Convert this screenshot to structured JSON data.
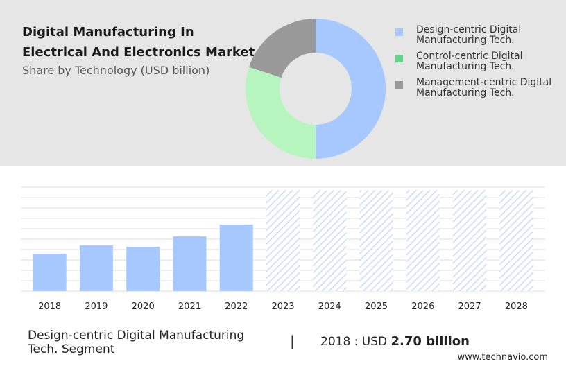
{
  "header": {
    "title": "Digital Manufacturing In Electrical And Electronics Market",
    "subtitle": "Share by Technology (USD billion)"
  },
  "colors": {
    "design": "#a6c8ff",
    "control": "#b6f5bd",
    "management": "#999999",
    "legend_control": "#5fd58a",
    "hatch": "#bcd4ff",
    "gridline": "#dddddd"
  },
  "chart_data": [
    {
      "type": "pie",
      "donut": true,
      "labels": [
        "Design-centric Digital Manufacturing Tech.",
        "Control-centric Digital Manufacturing Tech.",
        "Management-centric Digital Manufacturing Tech."
      ],
      "values": [
        50,
        30,
        20
      ],
      "legend_position": "right"
    },
    {
      "type": "bar",
      "categories": [
        "2018",
        "2019",
        "2020",
        "2021",
        "2022",
        "2023",
        "2024",
        "2025",
        "2026",
        "2027",
        "2028"
      ],
      "values": [
        2.7,
        3.3,
        3.2,
        3.95,
        4.8,
        null,
        null,
        null,
        null,
        null,
        null
      ],
      "forecast_categories": [
        "2023",
        "2024",
        "2025",
        "2026",
        "2027",
        "2028"
      ],
      "ylim": [
        0,
        7.5
      ],
      "grid": true
    }
  ],
  "footer": {
    "segment": "Design-centric Digital Manufacturing Tech. Segment",
    "divider": "|",
    "year_label": "2018 : USD",
    "value": "2.70 billion",
    "source": "www.technavio.com"
  }
}
